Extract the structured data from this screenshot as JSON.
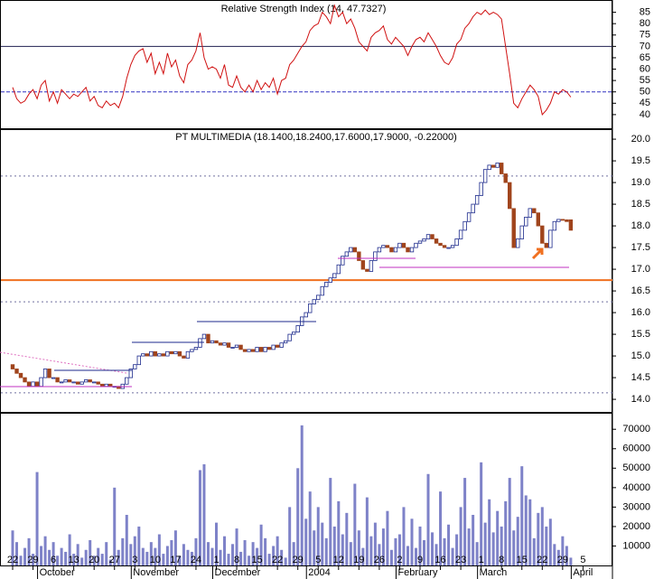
{
  "chart_data": [
    {
      "type": "line",
      "title": "Relative Strength Index (14, 47.7327)",
      "color": "#d01010",
      "ylim": [
        34,
        90
      ],
      "yticks": [
        40,
        45,
        50,
        55,
        60,
        65,
        70,
        75,
        80,
        85
      ],
      "levels": [
        {
          "value": 70,
          "color": "#202050",
          "style": "solid"
        },
        {
          "value": 50,
          "color": "#3030c0",
          "style": "dashed"
        }
      ],
      "values": [
        52,
        47,
        45,
        46,
        49,
        51,
        47,
        53,
        55,
        46,
        50,
        45,
        51,
        49,
        47,
        49,
        48,
        50,
        52,
        46,
        48,
        44,
        43,
        46,
        44,
        45,
        43,
        48,
        56,
        62,
        66,
        68,
        69,
        63,
        67,
        58,
        63,
        58,
        67,
        61,
        64,
        57,
        54,
        62,
        64,
        68,
        76,
        65,
        60,
        61,
        60,
        56,
        62,
        53,
        52,
        57,
        52,
        50,
        53,
        50,
        55,
        51,
        54,
        52,
        56,
        49,
        55,
        56,
        62,
        64,
        67,
        70,
        72,
        77,
        79,
        80,
        85,
        83,
        80,
        88,
        83,
        85,
        80,
        82,
        78,
        72,
        70,
        68,
        74,
        76,
        77,
        79,
        73,
        71,
        74,
        72,
        70,
        66,
        70,
        73,
        74,
        72,
        76,
        73,
        70,
        66,
        63,
        62,
        65,
        71,
        73,
        78,
        80,
        83,
        85,
        84,
        86,
        84,
        85,
        84,
        82,
        70,
        58,
        45,
        43,
        47,
        50,
        53,
        51,
        48,
        40,
        42,
        45,
        50,
        49,
        51,
        50,
        47.7,
        null,
        null,
        null
      ]
    },
    {
      "type": "candlestick",
      "title": "PT MULTIMEDIA (18.1400,18.2400,17.6000,17.9000, -0.22000)",
      "up_color": "#ffffff",
      "down_color": "#a0441c",
      "edge_color": "#1c2a8c",
      "ylim": [
        13.71,
        20.21
      ],
      "yticks": [
        {
          "value": 14,
          "label": "14.0"
        },
        {
          "value": 14.5,
          "label": "14.5"
        },
        {
          "value": 15,
          "label": "15.0"
        },
        {
          "value": 15.5,
          "label": "15.5"
        },
        {
          "value": 16,
          "label": "16.0"
        },
        {
          "value": 16.5,
          "label": "16.5"
        },
        {
          "value": 17,
          "label": "17.0"
        },
        {
          "value": 17.5,
          "label": "17.5"
        },
        {
          "value": 18,
          "label": "18.0"
        },
        {
          "value": 18.5,
          "label": "18.5"
        },
        {
          "value": 19,
          "label": "19.0"
        },
        {
          "value": 19.5,
          "label": "19.5"
        },
        {
          "value": 20,
          "label": "20.0"
        }
      ],
      "levels": [
        {
          "value": 16.75,
          "color": "#f07020",
          "style": "solid"
        },
        {
          "value": 19.15,
          "color": "#7070a0",
          "style": "dotted"
        },
        {
          "value": 16.25,
          "color": "#7070a0",
          "style": "dotted"
        },
        {
          "value": 14.15,
          "color": "#7070a0",
          "style": "dotted"
        }
      ],
      "open": [
        14.8,
        14.7,
        14.6,
        14.5,
        14.4,
        14.3,
        14.4,
        14.3,
        14.5,
        14.7,
        14.5,
        14.5,
        14.4,
        14.4,
        14.45,
        14.4,
        14.4,
        14.35,
        14.4,
        14.45,
        14.4,
        14.4,
        14.35,
        14.3,
        14.35,
        14.3,
        14.3,
        14.25,
        14.35,
        14.5,
        14.7,
        14.8,
        15.0,
        15.05,
        15.0,
        15.1,
        15.0,
        15.05,
        15.0,
        15.1,
        15.05,
        15.1,
        15.0,
        14.95,
        15.1,
        15.15,
        15.2,
        15.4,
        15.5,
        15.3,
        15.35,
        15.3,
        15.25,
        15.3,
        15.2,
        15.2,
        15.25,
        15.15,
        15.1,
        15.15,
        15.1,
        15.2,
        15.1,
        15.2,
        15.15,
        15.25,
        15.2,
        15.3,
        15.35,
        15.5,
        15.55,
        15.7,
        15.9,
        16.0,
        16.2,
        16.3,
        16.4,
        16.6,
        16.7,
        16.8,
        16.9,
        17.1,
        17.3,
        17.4,
        17.5,
        17.4,
        17.2,
        17.0,
        16.95,
        17.2,
        17.4,
        17.5,
        17.55,
        17.5,
        17.4,
        17.5,
        17.6,
        17.5,
        17.4,
        17.5,
        17.6,
        17.65,
        17.7,
        17.8,
        17.7,
        17.6,
        17.55,
        17.5,
        17.5,
        17.55,
        17.7,
        17.9,
        18.1,
        18.3,
        18.5,
        18.7,
        19.0,
        19.3,
        19.4,
        19.35,
        19.45,
        19.2,
        19.0,
        18.4,
        17.5,
        17.7,
        18.0,
        18.2,
        18.4,
        18.3,
        18.0,
        17.6,
        17.5,
        17.9,
        18.1,
        18.15,
        18.14,
        18.14,
        null,
        null,
        null
      ],
      "close": [
        14.7,
        14.6,
        14.5,
        14.4,
        14.3,
        14.4,
        14.3,
        14.5,
        14.7,
        14.5,
        14.5,
        14.4,
        14.4,
        14.45,
        14.4,
        14.4,
        14.35,
        14.4,
        14.45,
        14.4,
        14.4,
        14.35,
        14.3,
        14.35,
        14.3,
        14.3,
        14.25,
        14.35,
        14.5,
        14.7,
        14.8,
        15.0,
        15.05,
        15.0,
        15.1,
        15.0,
        15.05,
        15.0,
        15.1,
        15.05,
        15.1,
        15.0,
        14.95,
        15.1,
        15.15,
        15.2,
        15.4,
        15.5,
        15.3,
        15.35,
        15.3,
        15.25,
        15.3,
        15.2,
        15.2,
        15.25,
        15.15,
        15.1,
        15.15,
        15.1,
        15.2,
        15.1,
        15.2,
        15.15,
        15.25,
        15.2,
        15.3,
        15.35,
        15.5,
        15.55,
        15.7,
        15.9,
        16.0,
        16.2,
        16.3,
        16.4,
        16.6,
        16.7,
        16.8,
        16.9,
        17.1,
        17.3,
        17.4,
        17.5,
        17.4,
        17.2,
        17.0,
        16.95,
        17.2,
        17.4,
        17.5,
        17.55,
        17.5,
        17.4,
        17.5,
        17.6,
        17.5,
        17.4,
        17.5,
        17.6,
        17.65,
        17.7,
        17.8,
        17.7,
        17.6,
        17.55,
        17.5,
        17.5,
        17.55,
        17.7,
        17.9,
        18.1,
        18.3,
        18.5,
        18.7,
        19.0,
        19.3,
        19.4,
        19.35,
        19.45,
        19.2,
        19.0,
        18.4,
        17.5,
        17.7,
        18.0,
        18.2,
        18.4,
        18.3,
        18.0,
        17.6,
        17.5,
        17.9,
        18.1,
        18.15,
        18.14,
        18.1,
        17.9,
        null,
        null,
        null
      ]
    },
    {
      "type": "bar",
      "color": "#7e82c8",
      "ylim": [
        0,
        78000
      ],
      "yticks": [
        10000,
        20000,
        30000,
        40000,
        50000,
        60000,
        70000
      ],
      "categories": [
        "22",
        null,
        null,
        null,
        null,
        "29",
        null,
        null,
        null,
        null,
        "6",
        null,
        null,
        null,
        null,
        "13",
        null,
        null,
        null,
        null,
        "20",
        null,
        null,
        null,
        null,
        "27",
        null,
        null,
        null,
        null,
        "3",
        null,
        null,
        null,
        null,
        "10",
        null,
        null,
        null,
        null,
        "17",
        null,
        null,
        null,
        null,
        "24",
        null,
        null,
        null,
        null,
        "1",
        null,
        null,
        null,
        null,
        "8",
        null,
        null,
        null,
        null,
        "15",
        null,
        null,
        null,
        null,
        "22",
        null,
        null,
        null,
        null,
        "29",
        null,
        null,
        null,
        null,
        "5",
        null,
        null,
        null,
        null,
        "12",
        null,
        null,
        null,
        null,
        "19",
        null,
        null,
        null,
        null,
        "26",
        null,
        null,
        null,
        null,
        "2",
        null,
        null,
        null,
        null,
        "9",
        null,
        null,
        null,
        null,
        "16",
        null,
        null,
        null,
        null,
        "23",
        null,
        null,
        null,
        null,
        "1",
        null,
        null,
        null,
        null,
        "8",
        null,
        null,
        null,
        null,
        "15",
        null,
        null,
        null,
        null,
        "22",
        null,
        null,
        null,
        null,
        "29",
        null,
        null,
        null,
        null,
        "5"
      ],
      "months": [
        null,
        null,
        null,
        null,
        null,
        null,
        null,
        "October",
        null,
        null,
        null,
        null,
        null,
        null,
        null,
        null,
        null,
        null,
        null,
        null,
        null,
        null,
        null,
        null,
        null,
        null,
        null,
        null,
        null,
        null,
        "November",
        null,
        null,
        null,
        null,
        null,
        null,
        null,
        null,
        null,
        null,
        null,
        null,
        null,
        null,
        null,
        null,
        null,
        null,
        null,
        "December",
        null,
        null,
        null,
        null,
        null,
        null,
        null,
        null,
        null,
        null,
        null,
        null,
        null,
        null,
        null,
        null,
        null,
        null,
        null,
        null,
        null,
        null,
        "2004",
        null,
        null,
        null,
        null,
        null,
        null,
        null,
        null,
        null,
        null,
        null,
        null,
        null,
        null,
        null,
        null,
        null,
        null,
        null,
        null,
        null,
        "February",
        null,
        null,
        null,
        null,
        null,
        null,
        null,
        null,
        null,
        null,
        null,
        null,
        null,
        null,
        null,
        null,
        null,
        null,
        null,
        "March",
        null,
        null,
        null,
        null,
        null,
        null,
        null,
        null,
        null,
        null,
        null,
        null,
        null,
        null,
        null,
        null,
        null,
        null,
        null,
        null,
        null,
        null,
        "April",
        null,
        null
      ],
      "values": [
        18000,
        12000,
        5000,
        9000,
        14000,
        6000,
        48000,
        10000,
        15000,
        8000,
        12000,
        5000,
        9000,
        7000,
        16000,
        6000,
        11000,
        4000,
        8000,
        13000,
        5000,
        9000,
        6000,
        12000,
        3000,
        40000,
        8000,
        14000,
        26000,
        11000,
        15000,
        20000,
        9000,
        7000,
        12000,
        9000,
        16000,
        6000,
        10000,
        13000,
        18000,
        5000,
        11000,
        8000,
        7000,
        14000,
        49000,
        52000,
        12000,
        9000,
        22000,
        8000,
        15000,
        6000,
        11000,
        19000,
        7000,
        13000,
        5000,
        12000,
        9000,
        21000,
        14000,
        6000,
        10000,
        15000,
        8000,
        4000,
        30000,
        12000,
        50000,
        72000,
        24000,
        38000,
        18000,
        30000,
        22000,
        14000,
        45000,
        20000,
        33000,
        16000,
        27000,
        12000,
        42000,
        18000,
        9000,
        35000,
        15000,
        22000,
        11000,
        19000,
        28000,
        8000,
        14000,
        16000,
        30000,
        10000,
        24000,
        9000,
        20000,
        13000,
        47000,
        17000,
        11000,
        38000,
        14000,
        21000,
        9000,
        16000,
        30000,
        45000,
        19000,
        26000,
        12000,
        53000,
        22000,
        34000,
        17000,
        28000,
        20000,
        33000,
        45000,
        18000,
        25000,
        51000,
        36000,
        34000,
        14000,
        27000,
        30000,
        20000,
        24000,
        11000,
        8000,
        15000,
        10000,
        4000,
        null,
        null,
        null
      ]
    }
  ]
}
